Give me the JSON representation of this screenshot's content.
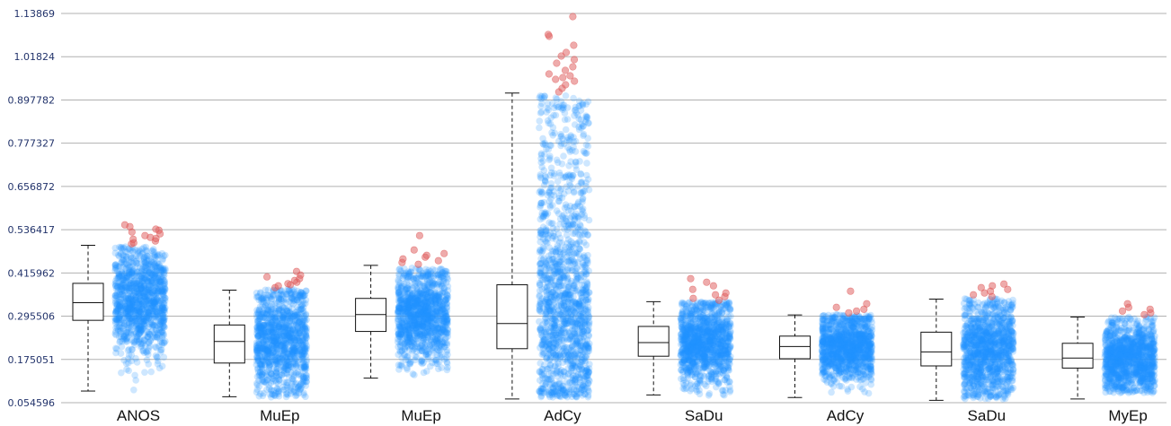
{
  "chart_data": {
    "type": "box-with-jitter",
    "ylim": [
      0.054596,
      1.13869
    ],
    "yticks": [
      "0.054596",
      "0.175051",
      "0.295506",
      "0.415962",
      "0.536417",
      "0.656872",
      "0.777327",
      "0.897782",
      "1.01824",
      "1.13869"
    ],
    "grid": true,
    "legend": "none",
    "colors": {
      "points": "#1e90ff",
      "outliers": "#e06666",
      "grid": "#b0b0b0",
      "box": "#111111"
    },
    "categories": [
      "ANOS",
      "MuEp",
      "MuEp",
      "AdCy",
      "SaDu",
      "AdCy",
      "SaDu",
      "MyEp"
    ],
    "boxes": [
      {
        "whisker_low": 0.087,
        "q1": 0.284,
        "median": 0.333,
        "q3": 0.387,
        "whisker_high": 0.493,
        "points_min": 0.085,
        "points_max": 0.49,
        "outliers": [
          0.497,
          0.5,
          0.505,
          0.51,
          0.512,
          0.515,
          0.52,
          0.525,
          0.53,
          0.535,
          0.538,
          0.545,
          0.55
        ]
      },
      {
        "whisker_low": 0.071,
        "q1": 0.165,
        "median": 0.225,
        "q3": 0.271,
        "whisker_high": 0.368,
        "points_min": 0.07,
        "points_max": 0.37,
        "outliers": [
          0.375,
          0.38,
          0.383,
          0.386,
          0.39,
          0.395,
          0.4,
          0.405,
          0.41,
          0.42
        ]
      },
      {
        "whisker_low": 0.123,
        "q1": 0.253,
        "median": 0.3,
        "q3": 0.345,
        "whisker_high": 0.437,
        "points_min": 0.13,
        "points_max": 0.43,
        "outliers": [
          0.44,
          0.445,
          0.45,
          0.455,
          0.46,
          0.465,
          0.47,
          0.48,
          0.52
        ]
      },
      {
        "whisker_low": 0.065,
        "q1": 0.205,
        "median": 0.275,
        "q3": 0.383,
        "whisker_high": 0.917,
        "points_min": 0.07,
        "points_max": 0.91,
        "outliers": [
          0.92,
          0.93,
          0.94,
          0.95,
          0.955,
          0.96,
          0.965,
          0.97,
          0.98,
          0.99,
          1.0,
          1.01,
          1.02,
          1.03,
          1.05,
          1.075,
          1.08,
          1.13
        ]
      },
      {
        "whisker_low": 0.076,
        "q1": 0.184,
        "median": 0.222,
        "q3": 0.267,
        "whisker_high": 0.336,
        "points_min": 0.075,
        "points_max": 0.335,
        "outliers": [
          0.34,
          0.345,
          0.35,
          0.355,
          0.36,
          0.37,
          0.38,
          0.39,
          0.4
        ]
      },
      {
        "whisker_low": 0.069,
        "q1": 0.177,
        "median": 0.211,
        "q3": 0.24,
        "whisker_high": 0.299,
        "points_min": 0.08,
        "points_max": 0.3,
        "outliers": [
          0.305,
          0.31,
          0.315,
          0.32,
          0.33,
          0.365
        ]
      },
      {
        "whisker_low": 0.061,
        "q1": 0.157,
        "median": 0.196,
        "q3": 0.251,
        "whisker_high": 0.343,
        "points_min": 0.065,
        "points_max": 0.345,
        "outliers": [
          0.35,
          0.355,
          0.36,
          0.365,
          0.37,
          0.375,
          0.38,
          0.385
        ]
      },
      {
        "whisker_low": 0.065,
        "q1": 0.151,
        "median": 0.179,
        "q3": 0.22,
        "whisker_high": 0.293,
        "points_min": 0.08,
        "points_max": 0.295,
        "outliers": [
          0.3,
          0.305,
          0.31,
          0.315,
          0.32,
          0.33
        ]
      }
    ]
  }
}
